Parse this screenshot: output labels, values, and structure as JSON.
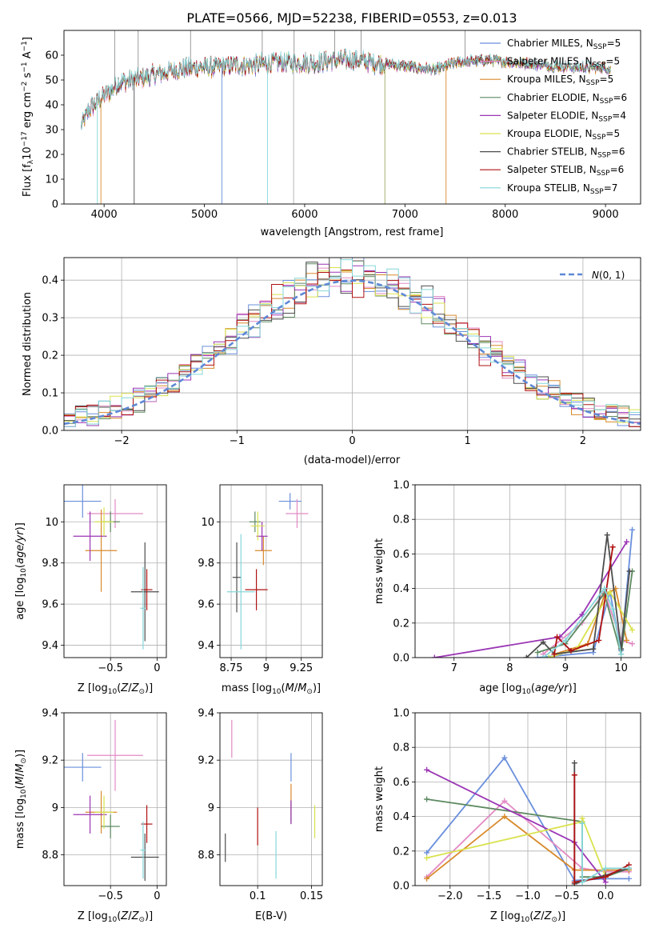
{
  "title": "PLATE=0566, MJD=52238, FIBERID=0553, z=0.013",
  "colors": {
    "Chabrier MILES": "#6a8fdc",
    "Salpeter MILES": "#e38ac4",
    "Kroupa MILES": "#d88a2c",
    "Chabrier ELODIE": "#5d8a60",
    "Salpeter ELODIE": "#9b35b5",
    "Kroupa ELODIE": "#d9e24f",
    "Chabrier STELIB": "#4d4d4d",
    "Salpeter STELIB": "#b01212",
    "Kroupa STELIB": "#86d6d8",
    "normal": "#5f88d6"
  },
  "chart_data": [
    {
      "type": "line",
      "xlabel": "wavelength [Angstrom, rest frame]",
      "ylabel": "Flux [f_λ10^-17 erg cm^-2 s^-1 A^-1]",
      "xlim": [
        3600,
        9350
      ],
      "ylim": [
        0,
        70
      ],
      "xticks": [
        4000,
        5000,
        6000,
        7000,
        8000,
        9000
      ],
      "yticks": [
        0,
        10,
        20,
        30,
        40,
        50,
        60
      ],
      "legend_position": "top-right",
      "legend": [
        {
          "name": "Chabrier MILES, N_SSP=5",
          "model": "Chabrier MILES"
        },
        {
          "name": "Salpeter MILES, N_SSP=5",
          "model": "Salpeter MILES"
        },
        {
          "name": "Kroupa MILES, N_SSP=5",
          "model": "Kroupa MILES"
        },
        {
          "name": "Chabrier ELODIE, N_SSP=6",
          "model": "Chabrier ELODIE"
        },
        {
          "name": "Salpeter ELODIE, N_SSP=4",
          "model": "Salpeter ELODIE"
        },
        {
          "name": "Kroupa ELODIE, N_SSP=5",
          "model": "Kroupa ELODIE"
        },
        {
          "name": "Chabrier STELIB, N_SSP=6",
          "model": "Chabrier STELIB"
        },
        {
          "name": "Salpeter STELIB, N_SSP=6",
          "model": "Salpeter STELIB"
        },
        {
          "name": "Kroupa STELIB, N_SSP=7",
          "model": "Kroupa STELIB"
        }
      ],
      "continuum": {
        "x": [
          3770,
          3850,
          3950,
          4050,
          4150,
          4300,
          4500,
          4700,
          4900,
          5100,
          5300,
          5500,
          5700,
          5900,
          6100,
          6300,
          6500,
          6700,
          6900,
          7100,
          7300,
          7500,
          7800,
          8100,
          8400,
          8700,
          9000,
          9050
        ],
        "y": [
          31,
          38,
          42,
          45,
          49,
          50,
          52,
          54,
          55,
          55,
          56,
          56,
          57,
          57,
          57,
          58,
          58,
          57,
          56,
          55,
          54,
          57,
          58,
          57,
          56,
          55,
          55,
          54
        ]
      },
      "spikes_up": [
        4105,
        4340,
        4862,
        5577,
        5895,
        6300,
        6563,
        7600
      ],
      "spikes_down": [
        3933,
        3968,
        4300,
        5175,
        5630,
        5890,
        6800,
        7410
      ]
    },
    {
      "type": "step",
      "xlabel": "(data-model)/error",
      "ylabel": "Normed distribution",
      "xlim": [
        -2.5,
        2.5
      ],
      "ylim": [
        0,
        0.46
      ],
      "xticks": [
        -2,
        -1,
        0,
        1,
        2
      ],
      "yticks": [
        0.0,
        0.1,
        0.2,
        0.3,
        0.4
      ],
      "bin_width": 0.1,
      "legend": {
        "label": "N(0,1)",
        "position": "top-right"
      }
    },
    {
      "type": "errorbar",
      "xlabel": "Z [log10(Z/Z⊙)]",
      "ylabel": "age [log10(age/yr)]",
      "xlim": [
        -1.0,
        0.1
      ],
      "ylim": [
        9.34,
        10.18
      ],
      "xticks": [
        -0.5,
        0.0
      ],
      "yticks": [
        9.4,
        9.6,
        9.8,
        10.0
      ],
      "points": [
        {
          "model": "Chabrier MILES",
          "x": -0.8,
          "y": 10.1,
          "xerr": 0.2,
          "yerr": 0.08
        },
        {
          "model": "Salpeter MILES",
          "x": -0.45,
          "y": 10.04,
          "xerr": 0.3,
          "yerr": 0.07
        },
        {
          "model": "Kroupa MILES",
          "x": -0.6,
          "y": 9.86,
          "xerr": 0.17,
          "yerr": 0.2
        },
        {
          "model": "Chabrier ELODIE",
          "x": -0.5,
          "y": 10.0,
          "xerr": 0.1,
          "yerr": 0.05
        },
        {
          "model": "Salpeter ELODIE",
          "x": -0.72,
          "y": 9.93,
          "xerr": 0.18,
          "yerr": 0.12
        },
        {
          "model": "Kroupa ELODIE",
          "x": -0.57,
          "y": 10.0,
          "xerr": 0.1,
          "yerr": 0.07
        },
        {
          "model": "Chabrier STELIB",
          "x": -0.13,
          "y": 9.66,
          "xerr": 0.15,
          "yerr": 0.24
        },
        {
          "model": "Salpeter STELIB",
          "x": -0.11,
          "y": 9.67,
          "xerr": 0.06,
          "yerr": 0.1
        },
        {
          "model": "Kroupa STELIB",
          "x": -0.15,
          "y": 9.58,
          "xerr": 0.03,
          "yerr": 0.2
        }
      ]
    },
    {
      "type": "errorbar",
      "xlabel": "mass [log10(M/M⊙)]",
      "ylabel": "",
      "xlim": [
        8.67,
        9.4
      ],
      "ylim": [
        9.34,
        10.18
      ],
      "xticks": [
        8.75,
        9.0,
        9.25
      ],
      "yticks": [
        9.4,
        9.6,
        9.8,
        10.0
      ],
      "points": [
        {
          "model": "Chabrier MILES",
          "x": 9.17,
          "y": 10.1,
          "xerr": 0.08,
          "yerr": 0.04
        },
        {
          "model": "Salpeter MILES",
          "x": 9.22,
          "y": 10.04,
          "xerr": 0.08,
          "yerr": 0.07
        },
        {
          "model": "Kroupa MILES",
          "x": 8.98,
          "y": 9.86,
          "xerr": 0.06,
          "yerr": 0.07
        },
        {
          "model": "Chabrier ELODIE",
          "x": 8.92,
          "y": 10.0,
          "xerr": 0.04,
          "yerr": 0.05
        },
        {
          "model": "Salpeter ELODIE",
          "x": 8.97,
          "y": 9.93,
          "xerr": 0.04,
          "yerr": 0.07
        },
        {
          "model": "Kroupa ELODIE",
          "x": 8.94,
          "y": 9.98,
          "xerr": 0.05,
          "yerr": 0.07
        },
        {
          "model": "Chabrier STELIB",
          "x": 8.79,
          "y": 9.73,
          "xerr": 0.03,
          "yerr": 0.17
        },
        {
          "model": "Salpeter STELIB",
          "x": 8.93,
          "y": 9.67,
          "xerr": 0.08,
          "yerr": 0.1
        },
        {
          "model": "Kroupa STELIB",
          "x": 8.82,
          "y": 9.66,
          "xerr": 0.1,
          "yerr": 0.28
        }
      ]
    },
    {
      "type": "line",
      "xlabel": "age [log10(age/yr)]",
      "ylabel": "mass weight",
      "xlim": [
        6.3,
        10.35
      ],
      "ylim": [
        0,
        1.0
      ],
      "xticks": [
        7,
        8,
        9,
        10
      ],
      "yticks": [
        0.0,
        0.2,
        0.4,
        0.6,
        0.8,
        1.0
      ],
      "series": [
        {
          "model": "Chabrier MILES",
          "x": [
            8.5,
            9.5,
            9.8,
            10.0,
            10.2
          ],
          "y": [
            0.0,
            0.03,
            0.38,
            0.04,
            0.74
          ]
        },
        {
          "model": "Salpeter MILES",
          "x": [
            8.6,
            9.3,
            9.7,
            10.0,
            10.2
          ],
          "y": [
            0.02,
            0.2,
            0.38,
            0.1,
            0.08
          ]
        },
        {
          "model": "Kroupa MILES",
          "x": [
            8.8,
            9.4,
            9.7,
            9.9,
            10.1
          ],
          "y": [
            0.02,
            0.08,
            0.36,
            0.4,
            0.1
          ]
        },
        {
          "model": "Chabrier ELODIE",
          "x": [
            8.5,
            9.0,
            9.7,
            10.0,
            10.2
          ],
          "y": [
            0.03,
            0.08,
            0.37,
            0.02,
            0.5
          ]
        },
        {
          "model": "Salpeter ELODIE",
          "x": [
            6.65,
            8.9,
            9.3,
            10.1
          ],
          "y": [
            0.0,
            0.12,
            0.25,
            0.67
          ]
        },
        {
          "model": "Kroupa ELODIE",
          "x": [
            8.7,
            9.2,
            9.8,
            10.2
          ],
          "y": [
            0.0,
            0.05,
            0.38,
            0.16
          ]
        },
        {
          "model": "Chabrier STELIB",
          "x": [
            8.3,
            8.6,
            8.8,
            9.5,
            9.75,
            10.0,
            10.15
          ],
          "y": [
            0.0,
            0.09,
            0.02,
            0.05,
            0.71,
            0.05,
            0.5
          ]
        },
        {
          "model": "Salpeter STELIB",
          "x": [
            8.8,
            8.85,
            9.1,
            9.6,
            9.85
          ],
          "y": [
            0.02,
            0.12,
            0.04,
            0.1,
            0.64
          ]
        },
        {
          "model": "Kroupa STELIB",
          "x": [
            8.6,
            9.0,
            9.7,
            9.85,
            10.0
          ],
          "y": [
            0.0,
            0.1,
            0.4,
            0.28,
            0.02
          ]
        }
      ]
    },
    {
      "type": "errorbar",
      "xlabel": "Z [log10(Z/Z⊙)]",
      "ylabel": "mass [log10(M/M⊙)]",
      "xlim": [
        -1.0,
        0.1
      ],
      "ylim": [
        8.67,
        9.4
      ],
      "xticks": [
        -0.5,
        0.0
      ],
      "yticks": [
        8.8,
        9.0,
        9.2,
        9.4
      ],
      "points": [
        {
          "model": "Chabrier MILES",
          "x": -0.8,
          "y": 9.17,
          "xerr": 0.2,
          "yerr": 0.06
        },
        {
          "model": "Salpeter MILES",
          "x": -0.45,
          "y": 9.22,
          "xerr": 0.3,
          "yerr": 0.15
        },
        {
          "model": "Kroupa MILES",
          "x": -0.6,
          "y": 8.98,
          "xerr": 0.17,
          "yerr": 0.09
        },
        {
          "model": "Chabrier ELODIE",
          "x": -0.5,
          "y": 8.92,
          "xerr": 0.1,
          "yerr": 0.05
        },
        {
          "model": "Salpeter ELODIE",
          "x": -0.72,
          "y": 8.97,
          "xerr": 0.18,
          "yerr": 0.08
        },
        {
          "model": "Kroupa ELODIE",
          "x": -0.57,
          "y": 8.98,
          "xerr": 0.1,
          "yerr": 0.07
        },
        {
          "model": "Chabrier STELIB",
          "x": -0.13,
          "y": 8.79,
          "xerr": 0.15,
          "yerr": 0.1
        },
        {
          "model": "Salpeter STELIB",
          "x": -0.11,
          "y": 8.93,
          "xerr": 0.06,
          "yerr": 0.08
        },
        {
          "model": "Kroupa STELIB",
          "x": -0.15,
          "y": 8.82,
          "xerr": 0.03,
          "yerr": 0.12
        }
      ]
    },
    {
      "type": "errorbar",
      "xlabel": "E(B-V)",
      "ylabel": "",
      "xlim": [
        0.065,
        0.16
      ],
      "ylim": [
        8.67,
        9.4
      ],
      "xticks": [
        0.1,
        0.15
      ],
      "yticks": [
        8.8,
        9.0,
        9.2,
        9.4
      ],
      "points": [
        {
          "model": "Chabrier MILES",
          "x": 0.131,
          "y": 9.17,
          "xerr": 0.0,
          "yerr": 0.06
        },
        {
          "model": "Salpeter MILES",
          "x": 0.076,
          "y": 9.29,
          "xerr": 0.0,
          "yerr": 0.08
        },
        {
          "model": "Kroupa MILES",
          "x": 0.131,
          "y": 9.02,
          "xerr": 0.0,
          "yerr": 0.08
        },
        {
          "model": "Chabrier ELODIE",
          "x": 0.131,
          "y": 8.98,
          "xerr": 0.0,
          "yerr": 0.05
        },
        {
          "model": "Salpeter ELODIE",
          "x": 0.131,
          "y": 8.98,
          "xerr": 0.0,
          "yerr": 0.05
        },
        {
          "model": "Kroupa ELODIE",
          "x": 0.153,
          "y": 8.94,
          "xerr": 0.0,
          "yerr": 0.07
        },
        {
          "model": "Chabrier STELIB",
          "x": 0.07,
          "y": 8.83,
          "xerr": 0.0,
          "yerr": 0.06
        },
        {
          "model": "Salpeter STELIB",
          "x": 0.1,
          "y": 8.92,
          "xerr": 0.0,
          "yerr": 0.08
        },
        {
          "model": "Kroupa STELIB",
          "x": 0.117,
          "y": 8.8,
          "xerr": 0.0,
          "yerr": 0.1
        }
      ]
    },
    {
      "type": "line",
      "xlabel": "Z [log10(Z/Z⊙)]",
      "ylabel": "mass weight",
      "xlim": [
        -2.45,
        0.45
      ],
      "ylim": [
        0,
        1.0
      ],
      "xticks": [
        -2.0,
        -1.5,
        -1.0,
        -0.5,
        0.0
      ],
      "yticks": [
        0.0,
        0.2,
        0.4,
        0.6,
        0.8,
        1.0
      ],
      "series": [
        {
          "model": "Chabrier MILES",
          "x": [
            -2.3,
            -1.3,
            -0.4,
            0.0,
            0.3
          ],
          "y": [
            0.19,
            0.74,
            0.03,
            0.04,
            0.04
          ]
        },
        {
          "model": "Salpeter MILES",
          "x": [
            -2.3,
            -1.3,
            -0.3,
            0.0,
            0.3
          ],
          "y": [
            0.05,
            0.49,
            0.1,
            0.08,
            0.08
          ]
        },
        {
          "model": "Kroupa MILES",
          "x": [
            -2.3,
            -1.3,
            -0.4,
            0.0,
            0.3
          ],
          "y": [
            0.04,
            0.4,
            0.09,
            0.09,
            0.09
          ]
        },
        {
          "model": "Chabrier ELODIE",
          "x": [
            -2.3,
            -0.3,
            -0.3,
            0.0,
            0.3
          ],
          "y": [
            0.5,
            0.37,
            0.05,
            0.05,
            0.1
          ]
        },
        {
          "model": "Salpeter ELODIE",
          "x": [
            -2.3,
            -0.4,
            0.0
          ],
          "y": [
            0.67,
            0.25,
            0.02
          ]
        },
        {
          "model": "Kroupa ELODIE",
          "x": [
            -2.3,
            -0.3,
            -0.3,
            0.0
          ],
          "y": [
            0.16,
            0.37,
            0.39,
            0.05
          ]
        },
        {
          "model": "Chabrier STELIB",
          "x": [
            -0.4,
            -0.4,
            0.0,
            0.3
          ],
          "y": [
            0.71,
            0.01,
            0.06,
            0.1
          ]
        },
        {
          "model": "Salpeter STELIB",
          "x": [
            -0.4,
            -0.4,
            0.0,
            0.3
          ],
          "y": [
            0.64,
            0.02,
            0.05,
            0.12
          ]
        },
        {
          "model": "Kroupa STELIB",
          "x": [
            -0.3,
            -0.3,
            0.0,
            0.3
          ],
          "y": [
            0.36,
            0.02,
            0.1,
            0.1
          ]
        }
      ]
    }
  ]
}
